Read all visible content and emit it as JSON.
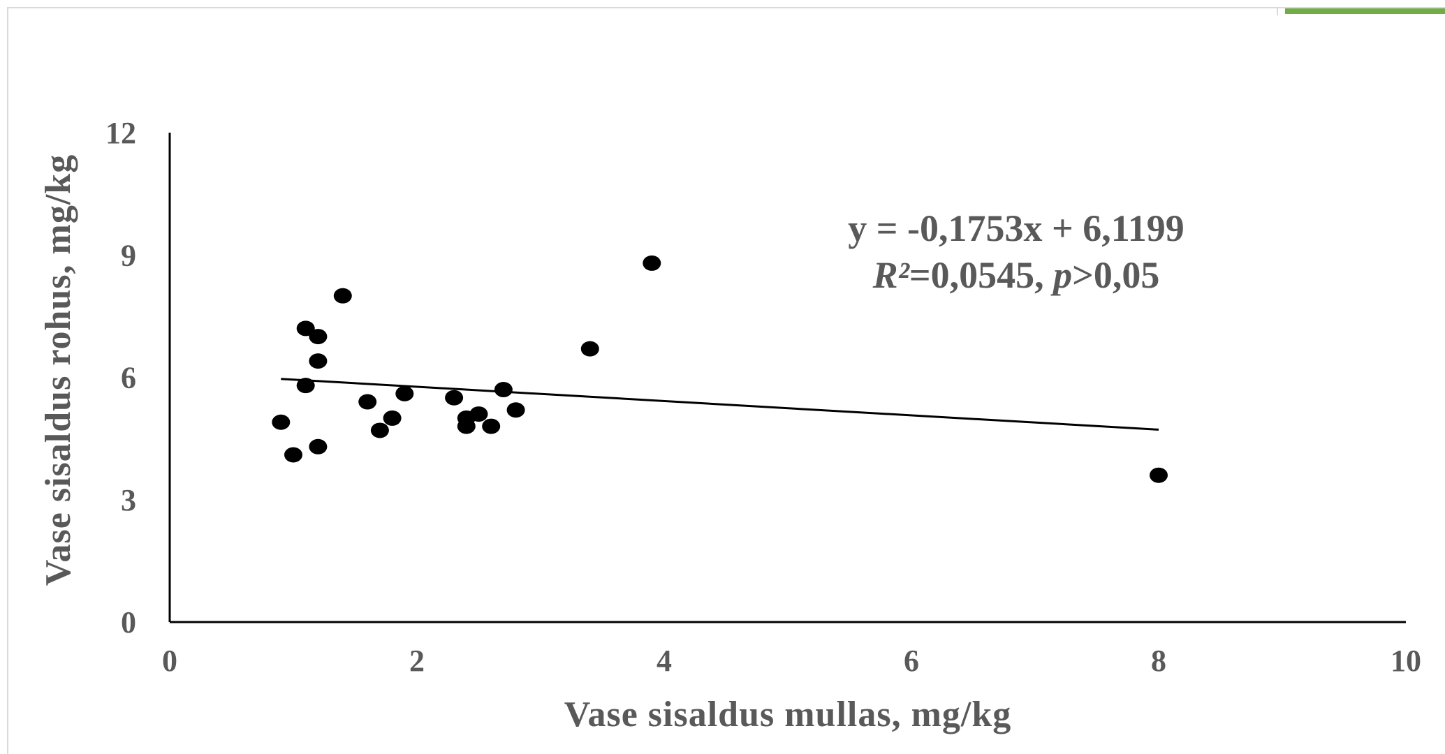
{
  "chart_data": {
    "type": "scatter",
    "title": "",
    "xlabel": "Vase sisaldus mullas, mg/kg",
    "ylabel": "Vase sisaldus rohus, mg/kg",
    "xlim": [
      0,
      10
    ],
    "ylim": [
      0,
      12
    ],
    "x_ticks": [
      "0",
      "2",
      "4",
      "6",
      "8",
      "10"
    ],
    "y_ticks": [
      "0",
      "3",
      "6",
      "9",
      "12"
    ],
    "grid": false,
    "point_color": "#000000",
    "points": [
      {
        "x": 0.9,
        "y": 4.9
      },
      {
        "x": 1.0,
        "y": 4.1
      },
      {
        "x": 1.1,
        "y": 7.2
      },
      {
        "x": 1.1,
        "y": 5.8
      },
      {
        "x": 1.2,
        "y": 7.0
      },
      {
        "x": 1.2,
        "y": 6.4
      },
      {
        "x": 1.2,
        "y": 4.3
      },
      {
        "x": 1.4,
        "y": 8.0
      },
      {
        "x": 1.6,
        "y": 5.4
      },
      {
        "x": 1.7,
        "y": 4.7
      },
      {
        "x": 1.8,
        "y": 5.0
      },
      {
        "x": 1.9,
        "y": 5.6
      },
      {
        "x": 2.3,
        "y": 5.5
      },
      {
        "x": 2.4,
        "y": 5.0
      },
      {
        "x": 2.4,
        "y": 4.8
      },
      {
        "x": 2.5,
        "y": 5.1
      },
      {
        "x": 2.6,
        "y": 4.8
      },
      {
        "x": 2.7,
        "y": 5.7
      },
      {
        "x": 2.8,
        "y": 5.2
      },
      {
        "x": 3.4,
        "y": 6.7
      },
      {
        "x": 3.9,
        "y": 8.8
      },
      {
        "x": 8.0,
        "y": 3.6
      }
    ],
    "trendline": {
      "slope": -0.1753,
      "intercept": 6.1199,
      "x_range": [
        0.9,
        8.0
      ]
    },
    "annotation": {
      "equation": "y = -0,1753x + 6,1199",
      "r_symbol": "R²",
      "r_value": "=0,0545, ",
      "p_symbol": "p",
      "p_value": ">0,05"
    }
  }
}
